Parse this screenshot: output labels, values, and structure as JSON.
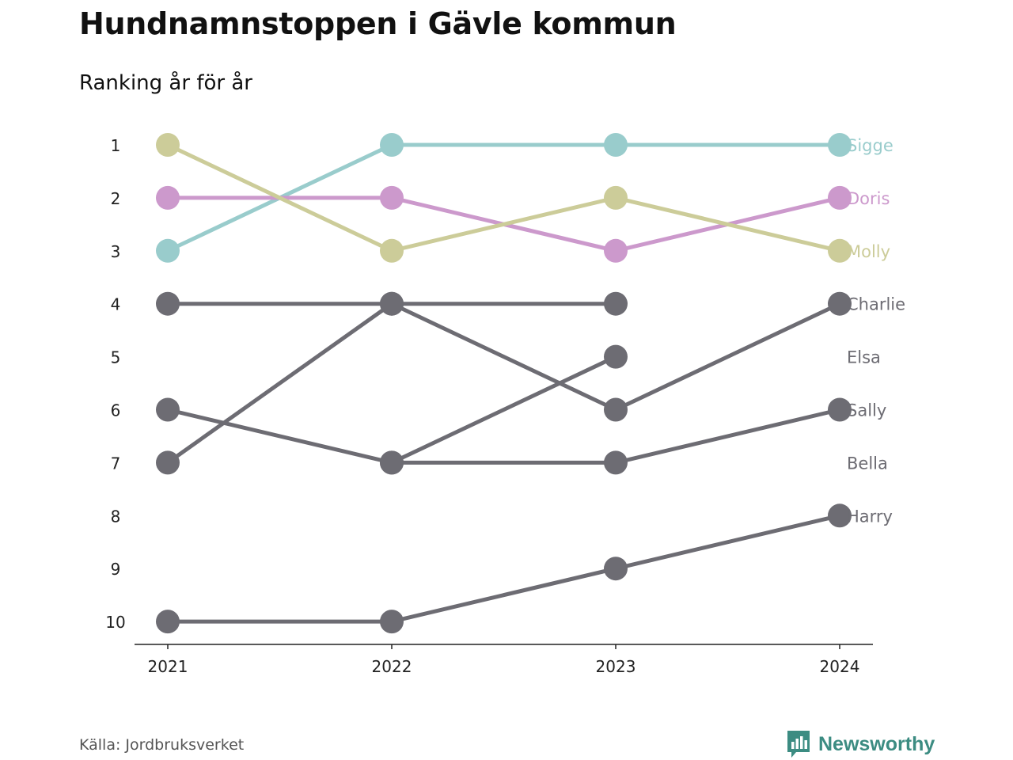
{
  "title": "Hundnamnstoppen i Gävle kommun",
  "subtitle": "Ranking år för år",
  "source": "Källa: Jordbruksverket",
  "brand": {
    "name": "Newsworthy",
    "icon": "bar-chart-logo-icon",
    "color": "#3c8c82"
  },
  "chart_data": {
    "type": "line",
    "x": [
      "2021",
      "2022",
      "2023",
      "2024"
    ],
    "y_ticks": [
      1,
      2,
      3,
      4,
      5,
      6,
      7,
      8,
      9,
      10
    ],
    "ylim": [
      1,
      10
    ],
    "y_inverted": true,
    "grid": false,
    "legend": "labels at line ends (right)",
    "series": [
      {
        "name": "Sigge",
        "color": "#99cccc",
        "values": [
          3,
          1,
          1,
          1
        ]
      },
      {
        "name": "Doris",
        "color": "#cc99cc",
        "values": [
          2,
          2,
          3,
          2
        ]
      },
      {
        "name": "Molly",
        "color": "#cccc99",
        "values": [
          1,
          3,
          2,
          3
        ]
      },
      {
        "name": "Charlie",
        "color": "#6d6c73",
        "values": [
          7,
          4,
          6,
          4
        ]
      },
      {
        "name": "Elsa",
        "color": "#6d6c73",
        "values": [
          null,
          7,
          5,
          null
        ]
      },
      {
        "name": "Sally",
        "color": "#6d6c73",
        "values": [
          6,
          7,
          7,
          6
        ]
      },
      {
        "name": "Bella",
        "color": "#6d6c73",
        "values": [
          4,
          4,
          4,
          null
        ]
      },
      {
        "name": "Harry",
        "color": "#6d6c73",
        "values": [
          10,
          10,
          9,
          8
        ]
      }
    ]
  }
}
